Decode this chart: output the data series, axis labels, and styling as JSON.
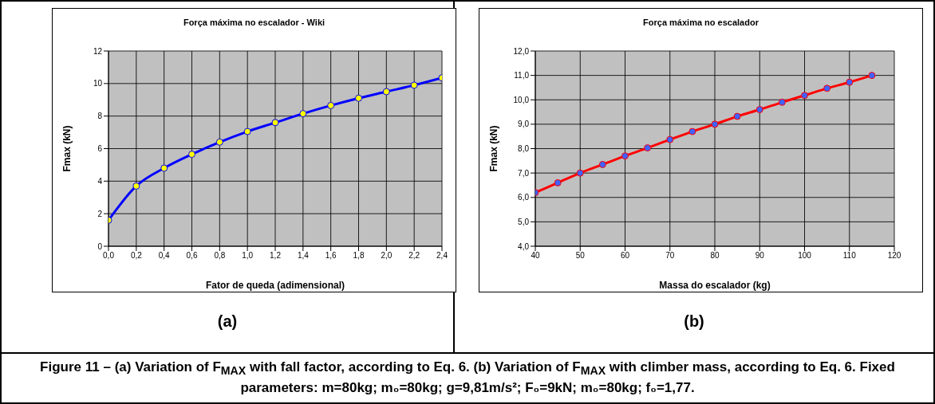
{
  "chart_data": [
    {
      "type": "line",
      "title": "Força máxima no escalador - Wiki",
      "xlabel": "Fator de queda (adimensional)",
      "ylabel": "Fmax (kN)",
      "x": [
        0,
        0.2,
        0.4,
        0.6,
        0.8,
        1.0,
        1.2,
        1.4,
        1.6,
        1.8,
        2.0,
        2.2,
        2.4
      ],
      "series": [
        {
          "color": "#0000ff",
          "values": [
            1.6,
            3.7,
            4.8,
            5.65,
            6.4,
            7.05,
            7.6,
            8.15,
            8.65,
            9.1,
            9.5,
            9.9,
            10.35
          ]
        }
      ],
      "xlim": [
        0,
        2.4
      ],
      "xticks": [
        {
          "value": 0,
          "label": "0,0"
        },
        {
          "value": 0.2,
          "label": "0,2"
        },
        {
          "value": 0.4,
          "label": "0,4"
        },
        {
          "value": 0.6,
          "label": "0,6"
        },
        {
          "value": 0.8,
          "label": "0,8"
        },
        {
          "value": 1.0,
          "label": "1,0"
        },
        {
          "value": 1.2,
          "label": "1,2"
        },
        {
          "value": 1.4,
          "label": "1,4"
        },
        {
          "value": 1.6,
          "label": "1,6"
        },
        {
          "value": 1.8,
          "label": "1,8"
        },
        {
          "value": 2.0,
          "label": "2,0"
        },
        {
          "value": 2.2,
          "label": "2,2"
        },
        {
          "value": 2.4,
          "label": "2,4"
        }
      ],
      "ylim": [
        0,
        12
      ],
      "yticks": [
        0,
        2,
        4,
        6,
        8,
        10,
        12
      ],
      "grid": true,
      "marker": "circle",
      "line_style": "solid",
      "annotations": [
        "(a)"
      ]
    },
    {
      "type": "line",
      "title": "Força máxima no escalador",
      "xlabel": "Massa do escalador (kg)",
      "ylabel": "Fmax (kN)",
      "x": [
        40,
        45,
        50,
        55,
        60,
        65,
        70,
        75,
        80,
        85,
        90,
        95,
        100,
        105,
        110,
        115
      ],
      "series": [
        {
          "color": "#ff0000",
          "values": [
            6.2,
            6.6,
            7.0,
            7.35,
            7.7,
            8.03,
            8.37,
            8.7,
            9.0,
            9.32,
            9.6,
            9.9,
            10.18,
            10.47,
            10.72,
            11.0
          ]
        }
      ],
      "xlim": [
        40,
        120
      ],
      "xticks": [
        40,
        50,
        60,
        70,
        80,
        90,
        100,
        110,
        120
      ],
      "ylim": [
        4,
        12
      ],
      "yticks": [
        {
          "value": 4,
          "label": "4,0"
        },
        {
          "value": 5,
          "label": "5,0"
        },
        {
          "value": 6,
          "label": "6,0"
        },
        {
          "value": 7,
          "label": "7,0"
        },
        {
          "value": 8,
          "label": "8,0"
        },
        {
          "value": 9,
          "label": "9,0"
        },
        {
          "value": 10,
          "label": "10,0"
        },
        {
          "value": 11,
          "label": "11,0"
        },
        {
          "value": 12,
          "label": "12,0"
        }
      ],
      "grid": true,
      "marker": "circle",
      "line_style": "solid",
      "annotations": [
        "(b)",
        "Figure 11 – (a) Variation of F$_{MAX}$ with fall factor, according to Eq. 6. (b) Variation of F$_{MAX}$ with climber mass, according to Eq. 6. Fixed parameters: m=80kg; m₀=80kg; g=9,81m/s²; F₀=9kN; m₀=80kg; f₀=1,77."
      ]
    }
  ]
}
